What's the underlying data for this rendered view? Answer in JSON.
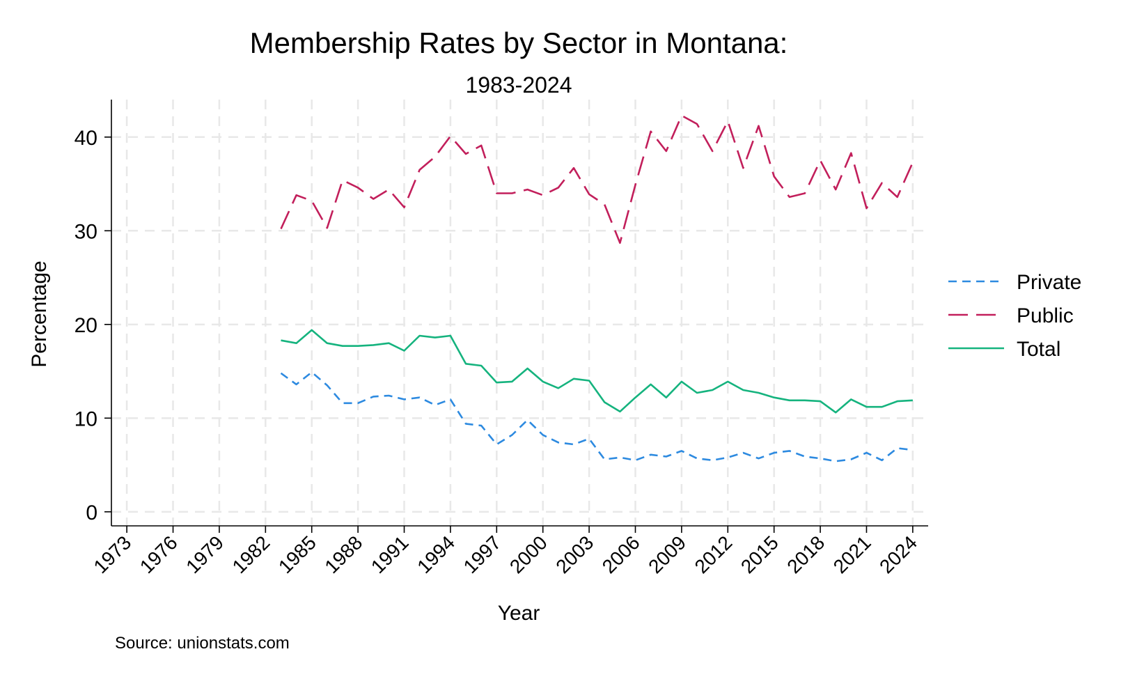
{
  "chart_data": {
    "type": "line",
    "title": "Membership Rates by Sector in Montana:",
    "subtitle": "1983-2024",
    "xlabel": "Year",
    "ylabel": "Percentage",
    "source": "Source: unionstats.com",
    "xlim": [
      1972,
      2025
    ],
    "ylim": [
      -1.5,
      44
    ],
    "x_ticks": [
      1973,
      1976,
      1979,
      1982,
      1985,
      1988,
      1991,
      1994,
      1997,
      2000,
      2003,
      2006,
      2009,
      2012,
      2015,
      2018,
      2021,
      2024
    ],
    "y_ticks": [
      0,
      10,
      20,
      30,
      40
    ],
    "grid": true,
    "legend_position": "right",
    "x": [
      1983,
      1984,
      1985,
      1986,
      1987,
      1988,
      1989,
      1990,
      1991,
      1992,
      1993,
      1994,
      1995,
      1996,
      1997,
      1998,
      1999,
      2000,
      2001,
      2002,
      2003,
      2004,
      2005,
      2006,
      2007,
      2008,
      2009,
      2010,
      2011,
      2012,
      2013,
      2014,
      2015,
      2016,
      2017,
      2018,
      2019,
      2020,
      2021,
      2022,
      2023,
      2024
    ],
    "series": [
      {
        "name": "Private",
        "color": "#2d8ae0",
        "dash": "short",
        "values": [
          14.8,
          13.6,
          14.9,
          13.5,
          11.6,
          11.6,
          12.3,
          12.4,
          12.0,
          12.2,
          11.4,
          12.0,
          9.4,
          9.2,
          7.2,
          8.2,
          9.8,
          8.2,
          7.4,
          7.2,
          7.8,
          5.6,
          5.8,
          5.5,
          6.1,
          5.9,
          6.5,
          5.7,
          5.5,
          5.8,
          6.3,
          5.7,
          6.3,
          6.5,
          5.9,
          5.7,
          5.4,
          5.6,
          6.3,
          5.5,
          6.8,
          6.6
        ]
      },
      {
        "name": "Public",
        "color": "#c21f5b",
        "dash": "long",
        "values": [
          30.2,
          33.8,
          33.2,
          30.3,
          35.4,
          34.6,
          33.4,
          34.4,
          32.5,
          36.5,
          37.9,
          40.1,
          38.2,
          39.1,
          34.0,
          34.0,
          34.4,
          33.8,
          34.6,
          36.7,
          33.9,
          32.8,
          28.7,
          34.9,
          40.6,
          38.5,
          42.3,
          41.4,
          38.5,
          41.7,
          36.7,
          41.2,
          35.8,
          33.6,
          34.0,
          37.5,
          34.4,
          38.3,
          32.4,
          35.1,
          33.6,
          37.3
        ]
      },
      {
        "name": "Total",
        "color": "#15b37e",
        "dash": "solid",
        "values": [
          18.3,
          18.0,
          19.4,
          18.0,
          17.7,
          17.7,
          17.8,
          18.0,
          17.2,
          18.8,
          18.6,
          18.8,
          15.8,
          15.6,
          13.8,
          13.9,
          15.3,
          13.9,
          13.2,
          14.2,
          14.0,
          11.7,
          10.7,
          12.2,
          13.6,
          12.2,
          13.9,
          12.7,
          13.0,
          13.9,
          13.0,
          12.7,
          12.2,
          11.9,
          11.9,
          11.8,
          10.6,
          12.0,
          11.2,
          11.2,
          11.8,
          11.9
        ]
      }
    ]
  }
}
